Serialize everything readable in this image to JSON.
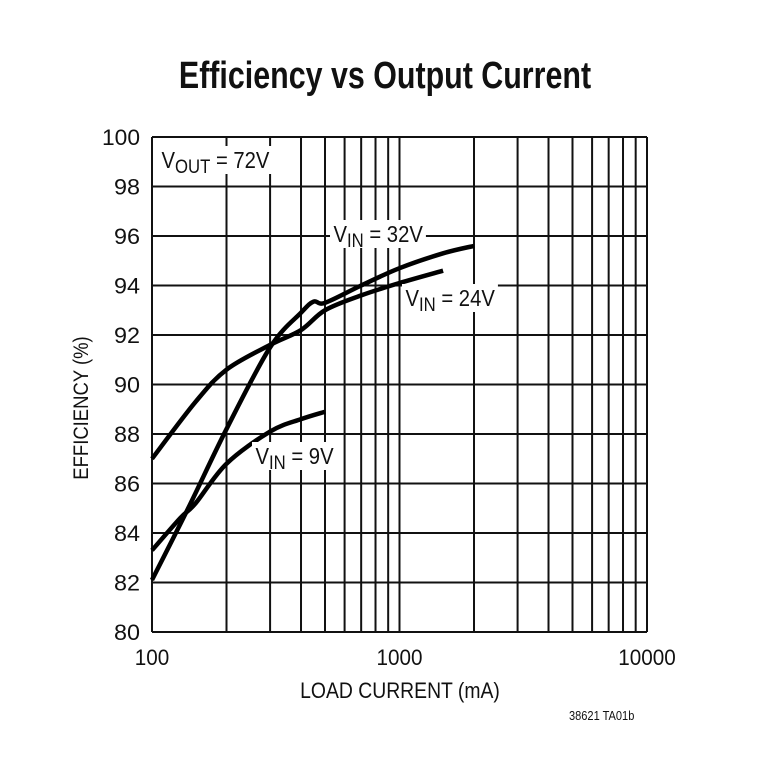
{
  "chart_data": {
    "type": "line",
    "title": "Efficiency vs Output Current",
    "xlabel": "LOAD CURRENT (mA)",
    "ylabel": "EFFICIENCY (%)",
    "xscale": "log",
    "xlim": [
      100,
      10000
    ],
    "ylim": [
      80,
      100
    ],
    "grid": true,
    "xticks": [
      "100",
      "1000",
      "10000"
    ],
    "yticks": [
      "80",
      "82",
      "84",
      "86",
      "88",
      "90",
      "92",
      "94",
      "96",
      "98",
      "100"
    ],
    "series": [
      {
        "name": "VIN = 9V",
        "x": [
          100,
          130,
          150,
          200,
          300,
          400,
          500
        ],
        "y": [
          83.3,
          84.6,
          85.2,
          86.8,
          88.1,
          88.6,
          88.9
        ]
      },
      {
        "name": "VIN = 24V",
        "x": [
          100,
          150,
          200,
          300,
          400,
          500,
          700,
          1000,
          1500
        ],
        "y": [
          87.0,
          89.3,
          90.6,
          91.6,
          92.2,
          93.0,
          93.6,
          94.1,
          94.6
        ]
      },
      {
        "name": "VIN = 32V",
        "x": [
          100,
          140,
          200,
          300,
          400,
          450,
          500,
          700,
          1000,
          1500,
          2000
        ],
        "y": [
          82.1,
          85.0,
          88.2,
          91.5,
          92.9,
          93.35,
          93.3,
          94.0,
          94.7,
          95.3,
          95.6
        ]
      }
    ],
    "annotations": {
      "vout": {
        "main": "V",
        "sub": "OUT",
        "rest": " = 72V"
      },
      "vin32": {
        "main": "V",
        "sub": "IN",
        "rest": " = 32V"
      },
      "vin24": {
        "main": "V",
        "sub": "IN",
        "rest": " = 24V"
      },
      "vin9": {
        "main": "V",
        "sub": "IN",
        "rest": " = 9V"
      }
    },
    "footnote": "38621 TA01b"
  }
}
